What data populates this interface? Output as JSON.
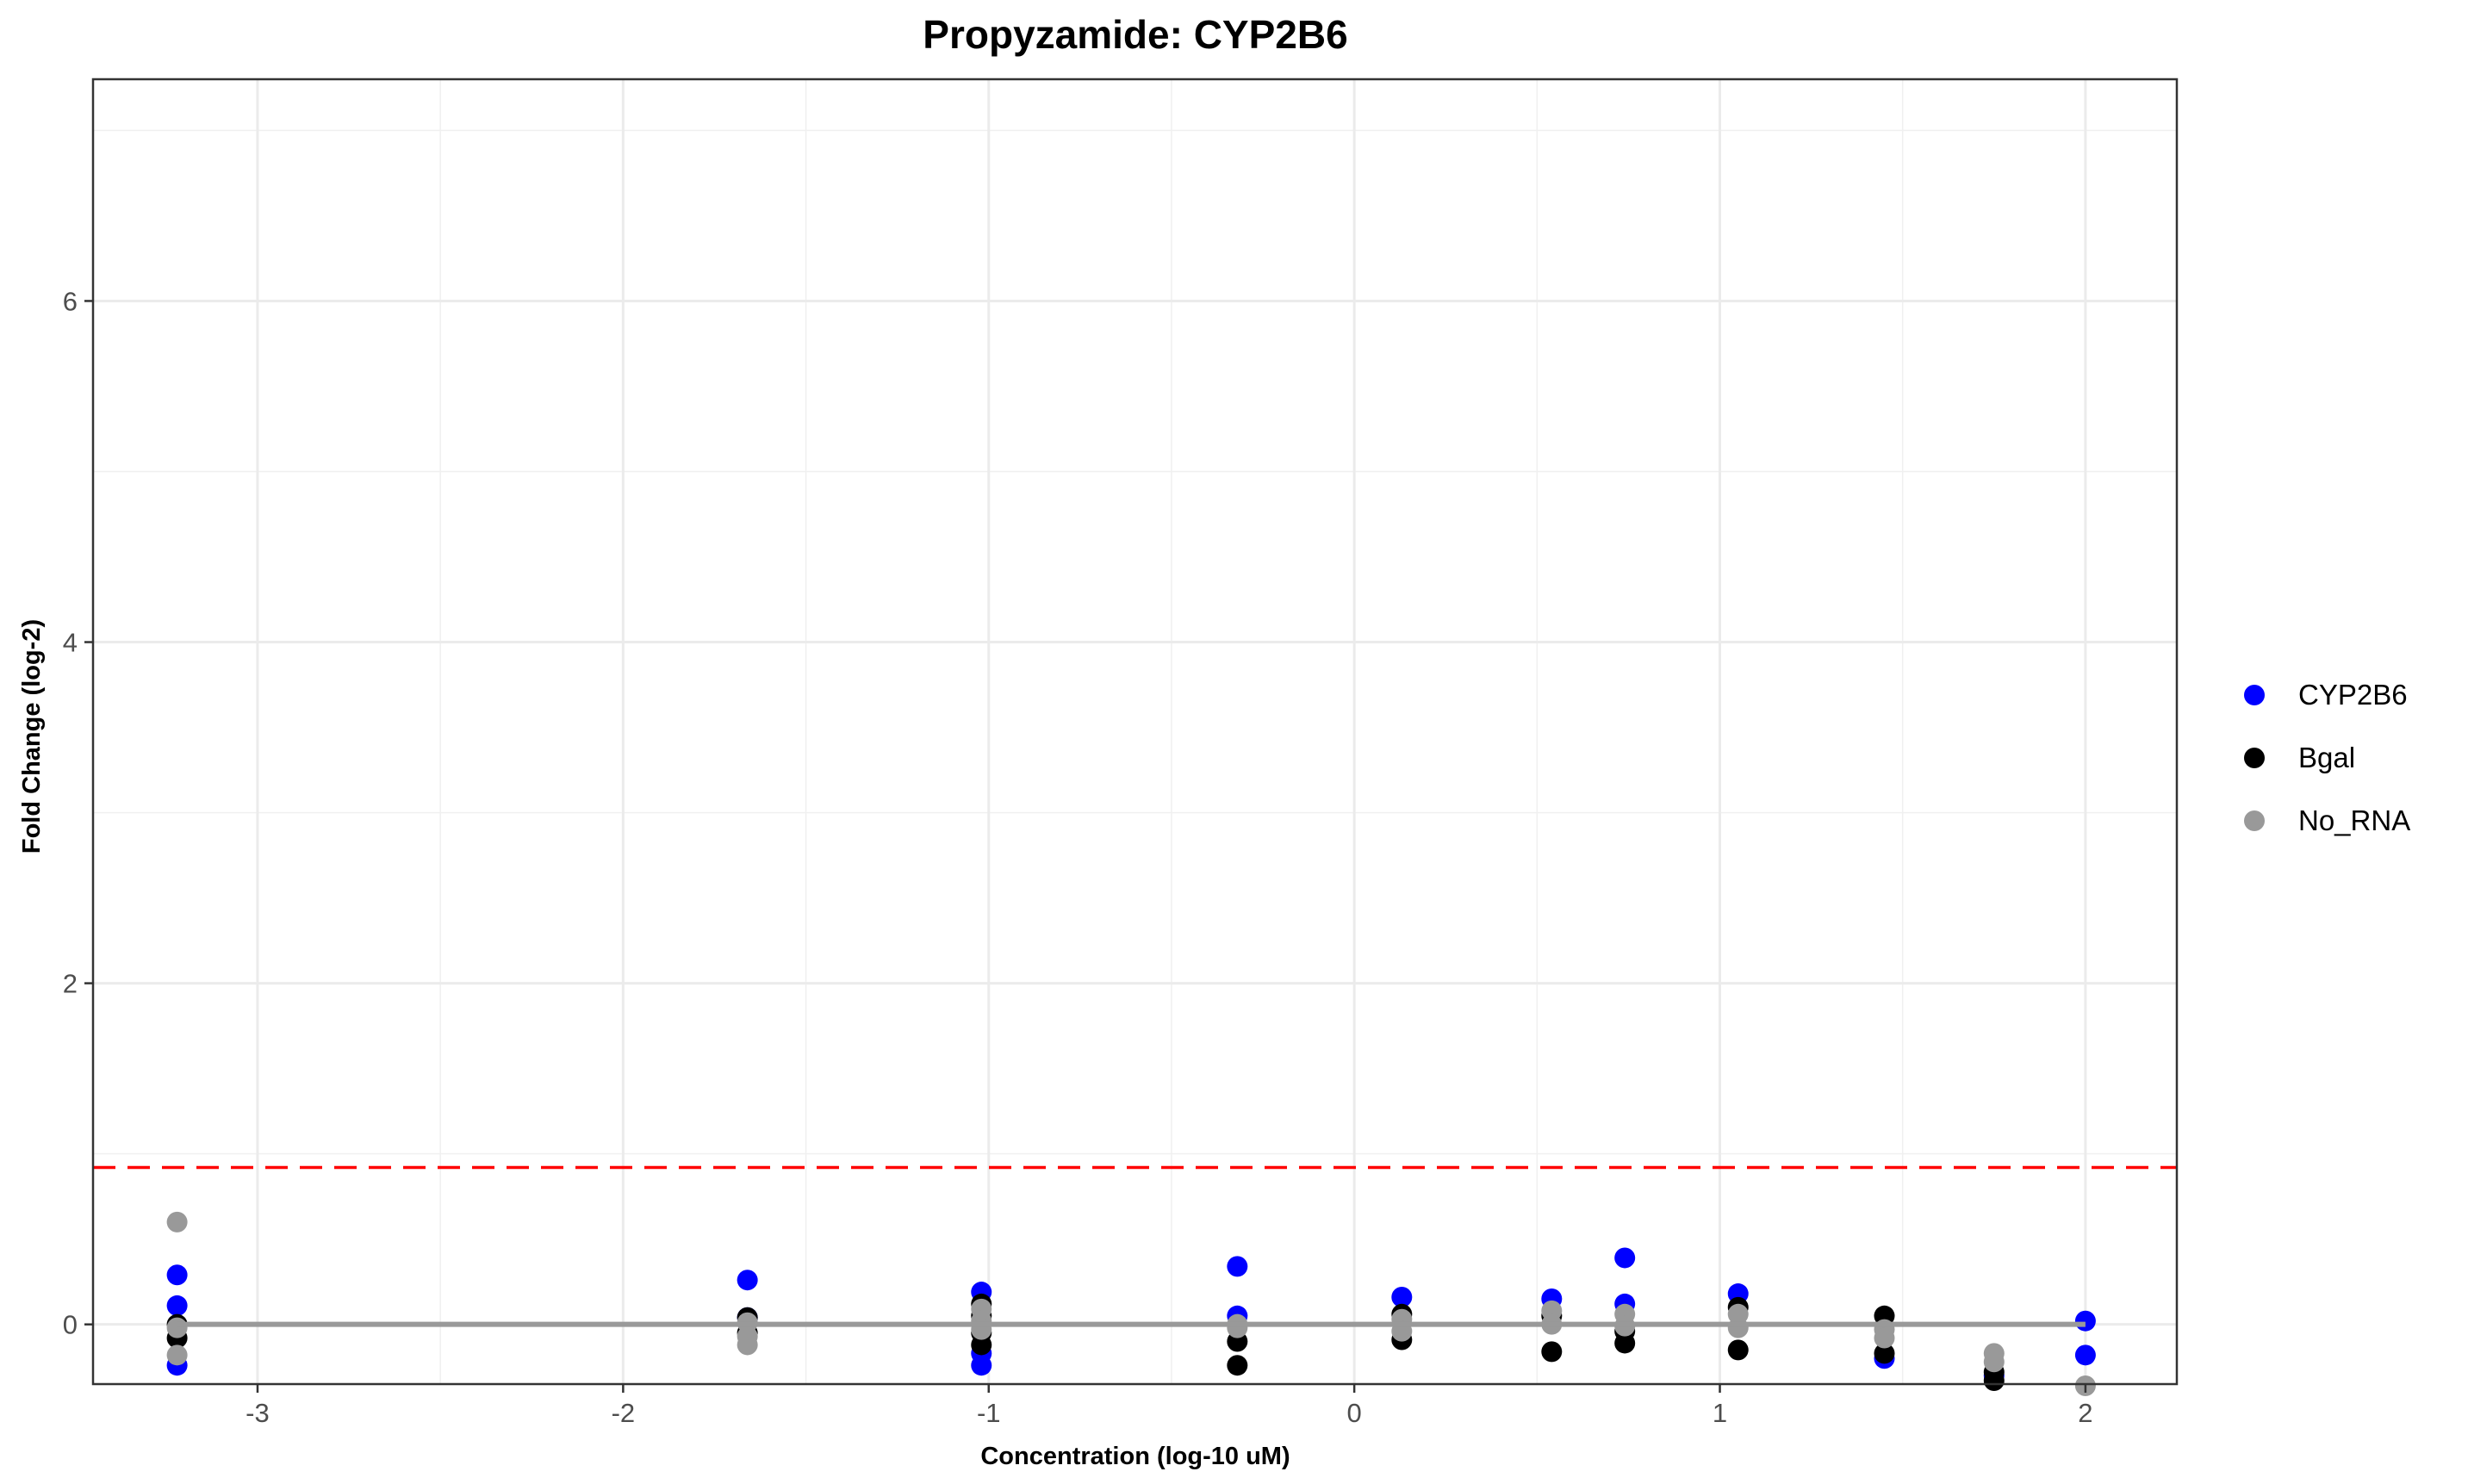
{
  "chart_data": {
    "type": "scatter",
    "title": "Propyzamide: CYP2B6",
    "xlabel": "Concentration (log-10 uM)",
    "ylabel": "Fold Change (log-2)",
    "xlim": [
      -3.45,
      2.25
    ],
    "ylim": [
      -0.35,
      7.3
    ],
    "x_ticks": [
      -3,
      -2,
      -1,
      0,
      1,
      2
    ],
    "x_tick_labels": [
      "-3",
      "-2",
      "-1",
      "0",
      "1",
      "2"
    ],
    "x_minor_ticks": [
      -2.5,
      -1.5,
      -0.5,
      0.5,
      1.5
    ],
    "y_ticks": [
      0,
      2,
      4,
      6
    ],
    "y_tick_labels": [
      "0",
      "2",
      "4",
      "6"
    ],
    "y_minor_ticks": [
      1,
      3,
      5,
      7
    ],
    "grid": true,
    "legend_position": "right",
    "threshold_line": {
      "y": 0.92,
      "color": "#ff0000",
      "style": "dashed"
    },
    "fit_lines": [
      {
        "series": "No_RNA",
        "x": [
          -3.22,
          2.0
        ],
        "y": [
          0.0,
          0.0
        ],
        "color": "#999999"
      }
    ],
    "series": [
      {
        "name": "CYP2B6",
        "color": "#0000ff",
        "points": [
          [
            -3.22,
            0.29
          ],
          [
            -3.22,
            0.11
          ],
          [
            -3.22,
            -0.24
          ],
          [
            -1.66,
            0.26
          ],
          [
            -1.66,
            0.04
          ],
          [
            -1.02,
            0.19
          ],
          [
            -1.02,
            -0.17
          ],
          [
            -1.02,
            -0.24
          ],
          [
            -0.32,
            0.34
          ],
          [
            -0.32,
            0.05
          ],
          [
            0.13,
            0.16
          ],
          [
            0.54,
            0.15
          ],
          [
            0.74,
            0.39
          ],
          [
            0.74,
            0.12
          ],
          [
            1.05,
            0.18
          ],
          [
            1.45,
            -0.2
          ],
          [
            1.75,
            -0.3
          ],
          [
            2.0,
            0.02
          ],
          [
            2.0,
            -0.18
          ]
        ]
      },
      {
        "name": "Bgal",
        "color": "#000000",
        "points": [
          [
            -3.22,
            -0.08
          ],
          [
            -3.22,
            0.0
          ],
          [
            -1.66,
            0.04
          ],
          [
            -1.66,
            -0.05
          ],
          [
            -1.02,
            0.12
          ],
          [
            -1.02,
            0.05
          ],
          [
            -1.02,
            -0.05
          ],
          [
            -1.02,
            -0.12
          ],
          [
            -0.32,
            -0.1
          ],
          [
            -0.32,
            -0.24
          ],
          [
            0.13,
            0.06
          ],
          [
            0.13,
            -0.09
          ],
          [
            0.54,
            0.05
          ],
          [
            0.54,
            -0.16
          ],
          [
            0.74,
            -0.04
          ],
          [
            0.74,
            -0.11
          ],
          [
            1.05,
            0.1
          ],
          [
            1.05,
            -0.15
          ],
          [
            1.45,
            0.05
          ],
          [
            1.45,
            -0.17
          ],
          [
            1.75,
            -0.28
          ],
          [
            1.75,
            -0.33
          ]
        ]
      },
      {
        "name": "No_RNA",
        "color": "#999999",
        "points": [
          [
            -3.22,
            0.6
          ],
          [
            -3.22,
            -0.18
          ],
          [
            -3.22,
            -0.02
          ],
          [
            -1.66,
            0.01
          ],
          [
            -1.66,
            -0.07
          ],
          [
            -1.66,
            -0.12
          ],
          [
            -1.02,
            0.09
          ],
          [
            -1.02,
            0.02
          ],
          [
            -1.02,
            -0.03
          ],
          [
            -0.32,
            0.0
          ],
          [
            -0.32,
            -0.02
          ],
          [
            0.13,
            0.03
          ],
          [
            0.13,
            -0.04
          ],
          [
            0.54,
            0.08
          ],
          [
            0.54,
            0.0
          ],
          [
            0.74,
            0.06
          ],
          [
            0.74,
            -0.01
          ],
          [
            1.05,
            0.06
          ],
          [
            1.05,
            -0.02
          ],
          [
            1.45,
            -0.03
          ],
          [
            1.45,
            -0.08
          ],
          [
            1.75,
            -0.17
          ],
          [
            1.75,
            -0.22
          ],
          [
            2.0,
            -0.36
          ]
        ]
      }
    ]
  }
}
